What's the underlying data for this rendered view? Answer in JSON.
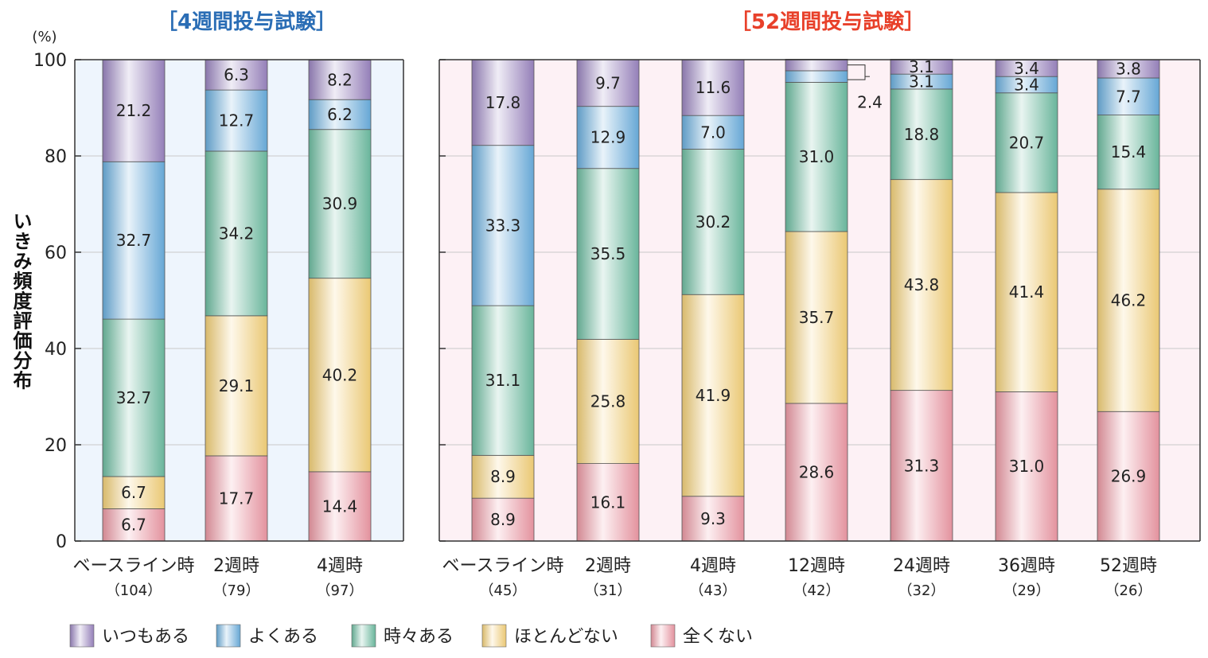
{
  "colors": {
    "title_4wk": "#2a6db5",
    "title_52wk": "#e8402a",
    "panel_bg_4wk": "#eef5fd",
    "panel_bg_52wk": "#fdf1f5",
    "categories": [
      "#9c86c2",
      "#6bb0e0",
      "#6ebfa3",
      "#f6d27a",
      "#ef9aa6"
    ]
  },
  "y_label": "いきみ頻度評価分布",
  "y_unit": "(%)",
  "legend": [
    "いつもある",
    "よくある",
    "時々ある",
    "ほとんどない",
    "全くない"
  ],
  "chart_data": [
    {
      "type": "bar",
      "stacked": true,
      "title": "［4週間投与試験］",
      "ylim": [
        0,
        100
      ],
      "yticks": [
        "0",
        "20",
        "40",
        "60",
        "80",
        "100"
      ],
      "grid": true,
      "categories": [
        "ベースライン時",
        "2週時",
        "4週時"
      ],
      "n_labels": [
        "（104）",
        "（79）",
        "（97）"
      ],
      "series": [
        {
          "name": "全くない",
          "values": [
            6.7,
            17.7,
            14.4
          ],
          "labels": [
            "6.7",
            "17.7",
            "14.4"
          ]
        },
        {
          "name": "ほとんどない",
          "values": [
            6.7,
            29.1,
            40.2
          ],
          "labels": [
            "6.7",
            "29.1",
            "40.2"
          ]
        },
        {
          "name": "時々ある",
          "values": [
            32.7,
            34.2,
            30.9
          ],
          "labels": [
            "32.7",
            "34.2",
            "30.9"
          ]
        },
        {
          "name": "よくある",
          "values": [
            32.7,
            12.7,
            6.2
          ],
          "labels": [
            "32.7",
            "12.7",
            "6.2"
          ]
        },
        {
          "name": "いつもある",
          "values": [
            21.2,
            6.3,
            8.2
          ],
          "labels": [
            "21.2",
            "6.3",
            "8.2"
          ]
        }
      ]
    },
    {
      "type": "bar",
      "stacked": true,
      "title": "［52週間投与試験］",
      "ylim": [
        0,
        100
      ],
      "grid": true,
      "categories": [
        "ベースライン時",
        "2週時",
        "4週時",
        "12週時",
        "24週時",
        "36週時",
        "52週時"
      ],
      "n_labels": [
        "（45）",
        "（31）",
        "（43）",
        "（42）",
        "（32）",
        "（29）",
        "（26）"
      ],
      "series": [
        {
          "name": "全くない",
          "values": [
            8.9,
            16.1,
            9.3,
            28.6,
            31.3,
            31.0,
            26.9
          ],
          "labels": [
            "8.9",
            "16.1",
            "9.3",
            "28.6",
            "31.3",
            "31.0",
            "26.9"
          ]
        },
        {
          "name": "ほとんどない",
          "values": [
            8.9,
            25.8,
            41.9,
            35.7,
            43.8,
            41.4,
            46.2
          ],
          "labels": [
            "8.9",
            "25.8",
            "41.9",
            "35.7",
            "43.8",
            "41.4",
            "46.2"
          ]
        },
        {
          "name": "時々ある",
          "values": [
            31.1,
            35.5,
            30.2,
            31.0,
            18.8,
            20.7,
            15.4
          ],
          "labels": [
            "31.1",
            "35.5",
            "30.2",
            "31.0",
            "18.8",
            "20.7",
            "15.4"
          ]
        },
        {
          "name": "よくある",
          "values": [
            33.3,
            12.9,
            7.0,
            2.4,
            3.1,
            3.4,
            7.7
          ],
          "labels": [
            "33.3",
            "12.9",
            "7.0",
            "",
            "3.1",
            "3.4",
            "7.7"
          ]
        },
        {
          "name": "いつもある",
          "values": [
            17.8,
            9.7,
            11.6,
            2.4,
            3.1,
            3.4,
            3.8
          ],
          "labels": [
            "17.8",
            "9.7",
            "11.6",
            "",
            "3.1",
            "3.4",
            "3.8"
          ]
        }
      ],
      "callout": {
        "category_index": 3,
        "label": "2.4"
      }
    }
  ]
}
